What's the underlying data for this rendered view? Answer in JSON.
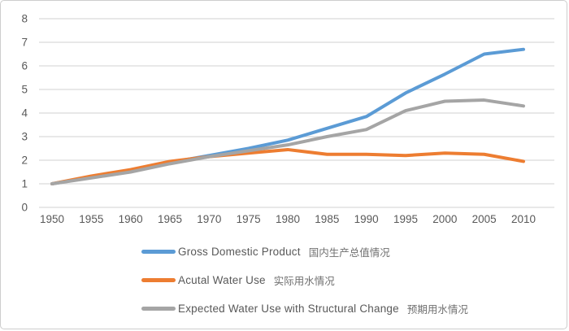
{
  "chart_data": {
    "type": "line",
    "title": "",
    "xlabel": "",
    "ylabel": "",
    "x": [
      1950,
      1955,
      1960,
      1965,
      1970,
      1975,
      1980,
      1985,
      1990,
      1995,
      2000,
      2005,
      2010
    ],
    "x_tick_labels": [
      "1950",
      "1955",
      "1960",
      "1965",
      "1970",
      "1975",
      "1980",
      "1985",
      "1990",
      "1995",
      "2000",
      "2005",
      "2010"
    ],
    "y_ticks": [
      0,
      1,
      2,
      3,
      4,
      5,
      6,
      7,
      8
    ],
    "ylim": [
      0,
      8
    ],
    "grid": true,
    "legend_position": "bottom-left",
    "series": [
      {
        "name": "Gross Domestic Product",
        "name_zh": "国内生产总值情况",
        "color": "#5B9BD5",
        "values": [
          1.0,
          1.28,
          1.55,
          1.9,
          2.2,
          2.5,
          2.85,
          3.35,
          3.85,
          4.85,
          5.65,
          6.5,
          6.7
        ]
      },
      {
        "name": "Acutal Water Use",
        "name_zh": "实际用水情况",
        "color": "#ED7D31",
        "values": [
          1.0,
          1.33,
          1.6,
          1.95,
          2.15,
          2.3,
          2.45,
          2.25,
          2.25,
          2.2,
          2.3,
          2.25,
          1.95
        ]
      },
      {
        "name": "Expected Water Use with Structural Change",
        "name_zh": "预期用水情况",
        "color": "#A5A5A5",
        "values": [
          1.0,
          1.25,
          1.5,
          1.85,
          2.15,
          2.4,
          2.65,
          3.0,
          3.3,
          4.1,
          4.5,
          4.55,
          4.3
        ]
      }
    ]
  },
  "style": {
    "background": "#FFFFFF",
    "border_color": "#CDCDCD",
    "gridline_color": "#D9D9D9",
    "axis_text_color": "#595959",
    "legend_text_color": "#595959",
    "legend_zh_text_color": "#707070"
  }
}
